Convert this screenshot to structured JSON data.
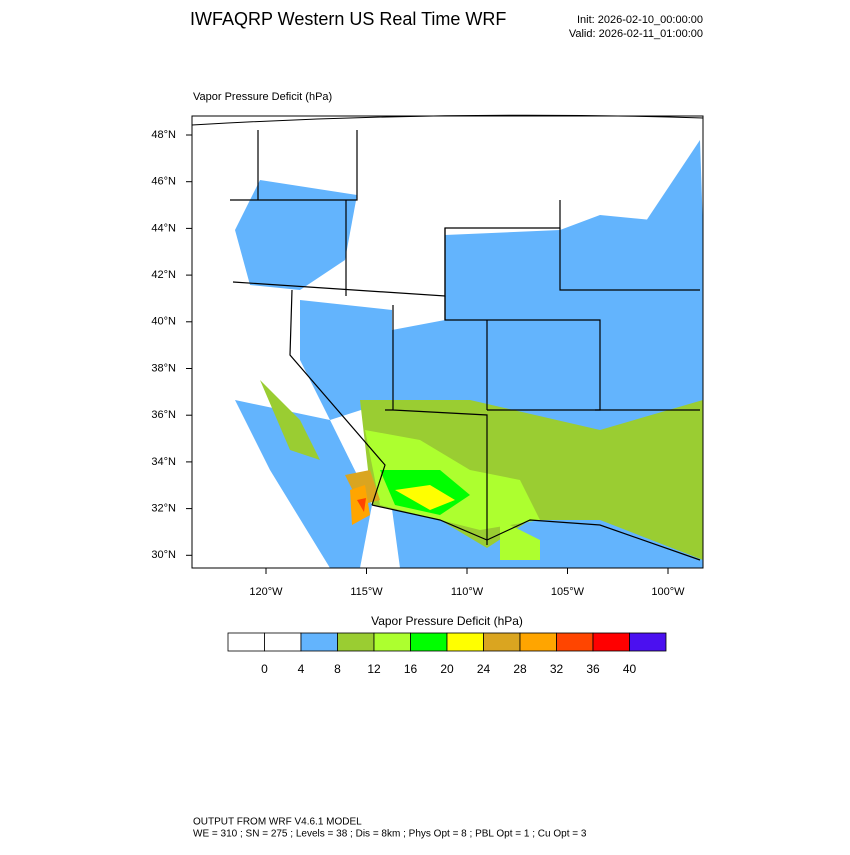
{
  "header": {
    "title": "IWFAQRP Western US Real Time WRF",
    "init": "Init: 2026-02-10_00:00:00",
    "valid": "Valid: 2026-02-11_01:00:00"
  },
  "plot": {
    "title": "Vapor Pressure Deficit   (hPa)",
    "lat_labels": [
      "48°N",
      "46°N",
      "44°N",
      "42°N",
      "40°N",
      "38°N",
      "36°N",
      "34°N",
      "32°N",
      "30°N"
    ],
    "lon_labels": [
      "120°W",
      "115°W",
      "110°W",
      "105°W",
      "100°W"
    ]
  },
  "colorbar": {
    "title": "Vapor Pressure Deficit  (hPa)",
    "levels": [
      0,
      4,
      8,
      12,
      16,
      20,
      24,
      28,
      32,
      36,
      40
    ],
    "colors": [
      "#ffffff",
      "#ffffff",
      "#63b4fd",
      "#9acd32",
      "#adff2f",
      "#00ff00",
      "#ffff00",
      "#daa520",
      "#ffa500",
      "#ff4500",
      "#ff0000",
      "#4b10f0"
    ]
  },
  "footer": {
    "line1": "OUTPUT FROM WRF V4.6.1 MODEL",
    "line2": "WE = 310 ; SN = 275 ; Levels = 38 ; Dis = 8km ; Phys Opt = 8 ; PBL Opt = 1 ; Cu Opt = 3"
  }
}
